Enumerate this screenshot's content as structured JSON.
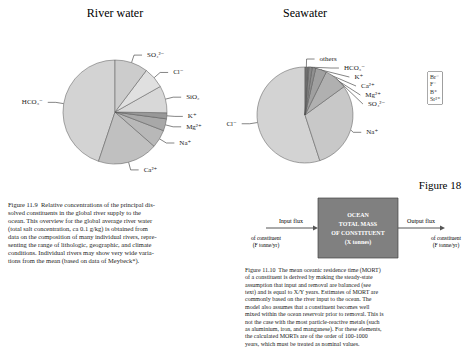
{
  "chart_data": [
    {
      "type": "pie",
      "title": "River water",
      "categories": [
        "HCO₃⁻",
        "Ca²⁺",
        "Na⁺",
        "Mg²⁺",
        "K⁺",
        "SiO₂",
        "Cl⁻",
        "SO₄²⁻"
      ],
      "values": [
        48,
        20,
        6,
        4,
        2,
        9,
        7,
        11
      ],
      "colors": [
        "#d3d3d3",
        "#c0c0c0",
        "#b8b8b8",
        "#a8a8a8",
        "#989898",
        "#d8d8d8",
        "#e0e0e0",
        "#cccccc"
      ],
      "annotations": [
        {
          "text": "Figure 11.9  Relative concentrations of the principal dis-\nsolved constituents in the global river supply to the\nocean. This overview for the global average river water\n(total salt concentration, ca 0.1 g/kg) is obtained from\ndata on the composition of many individual rivers, repre-\nsenting the range of lithologic, geographic, and climate\nconditions. Individual rivers may show very wide varia-\ntions from the mean (based on data of Meybeck*)."
        }
      ]
    },
    {
      "type": "pie",
      "title": "Seawater",
      "categories": [
        "Cl⁻",
        "Na⁺",
        "SO₄²⁻",
        "Mg²⁺",
        "Ca²⁺",
        "K⁺",
        "HCO₃⁻",
        "others"
      ],
      "values": [
        55,
        30,
        7.7,
        3.7,
        1.2,
        1.1,
        0.4,
        0.9
      ],
      "colors": [
        "#d3d3d3",
        "#c8c8c8",
        "#b0b0b0",
        "#a0a0a0",
        "#909090",
        "#888888",
        "#787878",
        "#707070"
      ],
      "annotations": [
        {
          "text": "Br⁻\nF⁻\nB⁺\nSr²⁺"
        },
        {
          "text": "Figure 18"
        },
        {
          "text": "OCEAN\nTOTAL MASS\nOF CONSTITUENT\n(X tonnes)",
          "color": "#808080"
        },
        {
          "text": "Input flux"
        },
        {
          "text": "of constituent\n(F tonne/yr)"
        },
        {
          "text": "Output flux"
        },
        {
          "text": "of constituent\n(F tonne/yr)"
        },
        {
          "text": "Figure 11.10  The mean oceanic residence time (MORT)\nof a constituent is derived by making the steady-state\nassumption that input and removal are balanced (see\ntext) and is equal to X/Y years. Estimates of MORT are\ncommonly based on the river input to the ocean. The\nmodel also assumes that a constituent becomes well\nmixed within the ocean reservoir prior to removal. This is\nnot the case with the most particle-reactive metals (such\nas aluminium, iron, and manganese). For these elements,\nthe calculated MORTs are of the order of 100-1000\nyears, which must be treated as nominal values."
        }
      ]
    }
  ]
}
